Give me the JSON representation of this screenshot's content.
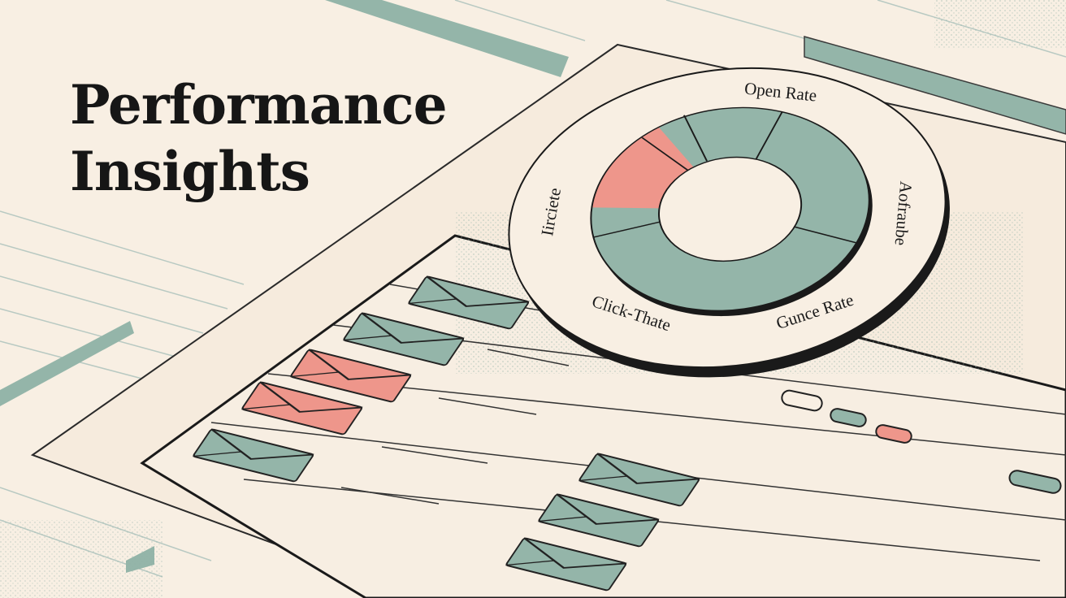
{
  "header": {
    "title_lines": [
      "Performance",
      "Insights"
    ]
  },
  "donut": {
    "labels": [
      "Open Rate",
      "Click-Thate",
      "Gunce Rate",
      "Iirciete",
      "Aofraube"
    ]
  }
}
